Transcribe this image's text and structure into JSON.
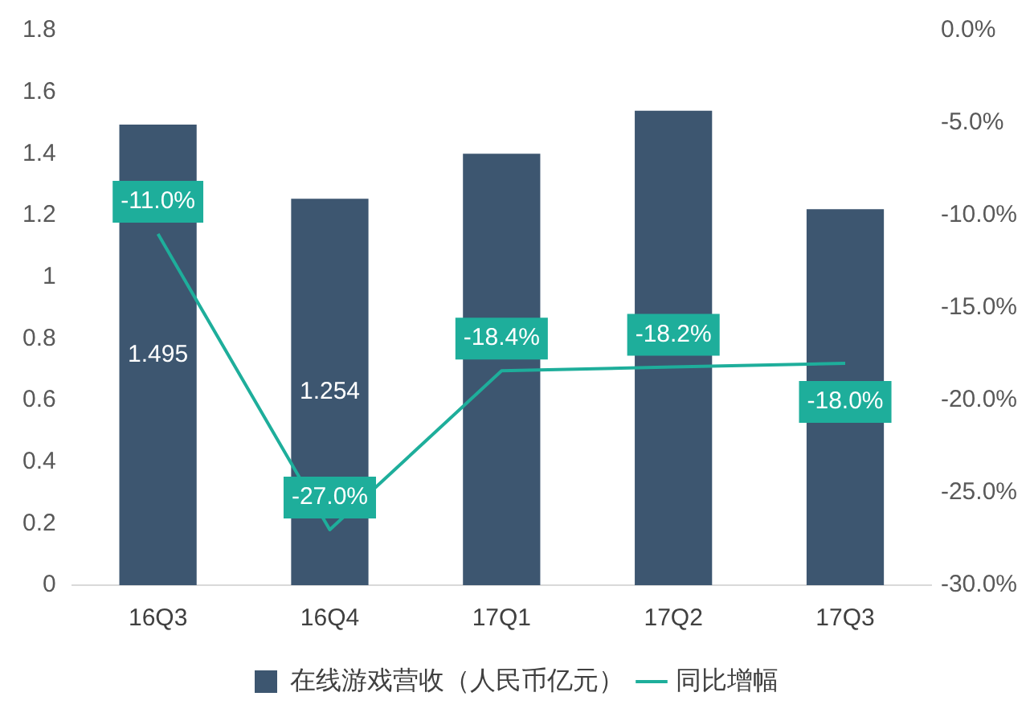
{
  "chart_data": {
    "type": "bar",
    "categories": [
      "16Q3",
      "16Q4",
      "17Q1",
      "17Q2",
      "17Q3"
    ],
    "series": [
      {
        "name": "在线游戏营收（人民币亿元）",
        "color": "#3d5670",
        "values": [
          1.495,
          1.254,
          1.4,
          1.54,
          1.22
        ],
        "value_labels": [
          "1.495",
          "1.254",
          null,
          null,
          null
        ]
      },
      {
        "name": "同比增幅",
        "type": "line",
        "axis": "y2",
        "color": "#1eae9b",
        "values": [
          -11.0,
          -27.0,
          -18.4,
          -18.2,
          -18.0
        ],
        "value_labels": [
          "-11.0%",
          "-27.0%",
          "-18.4%",
          "-18.2%",
          "-18.0%"
        ]
      }
    ],
    "ylim": [
      0,
      1.8
    ],
    "yticks": [
      0,
      0.2,
      0.4,
      0.6,
      0.8,
      1,
      1.2,
      1.4,
      1.6,
      1.8
    ],
    "y2lim": [
      -30,
      0
    ],
    "y2ticks": [
      {
        "value": -30,
        "label": "-30.0%"
      },
      {
        "value": -25,
        "label": "-25.0%"
      },
      {
        "value": -20,
        "label": "-20.0%"
      },
      {
        "value": -15,
        "label": "-15.0%"
      },
      {
        "value": -10,
        "label": "-10.0%"
      },
      {
        "value": -5,
        "label": "-5.0%"
      },
      {
        "value": 0,
        "label": "0.0%"
      }
    ],
    "grid": false,
    "legend": "bottom",
    "marker": "none",
    "line_style": "solid"
  }
}
